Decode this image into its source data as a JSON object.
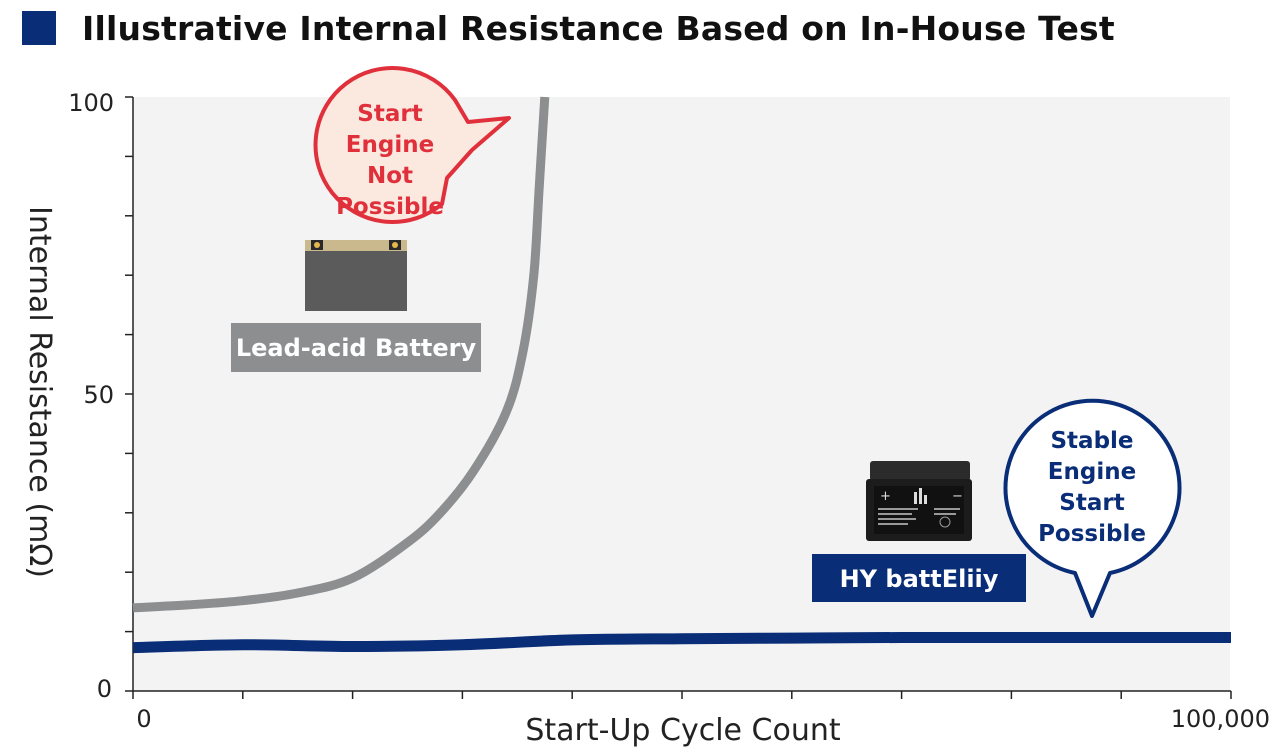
{
  "title": "Illustrative Internal Resistance Based on In-House Test",
  "colors": {
    "title_square": "#0a2d78",
    "plot_bg": "#f3f3f3",
    "lead_acid_line": "#8c8e90",
    "hy_line": "#0a2d78",
    "warn_red": "#e0303c",
    "warn_fill": "#fbe9df",
    "ok_fill": "#ffffff"
  },
  "chart_data": {
    "type": "line",
    "xlabel": "Start-Up Cycle Count",
    "ylabel": "Internal Resistance (mΩ)",
    "xlim": [
      0,
      100000
    ],
    "ylim": [
      0,
      100
    ],
    "x_tick_labels": [
      "0",
      "100,000"
    ],
    "y_tick_labels": [
      "0",
      "50",
      "100"
    ],
    "series": [
      {
        "name": "Lead-acid Battery",
        "color": "#8c8e90",
        "x": [
          0,
          5000,
          10000,
          15000,
          20000,
          25000,
          28000,
          31000,
          34000,
          35500,
          36500,
          37000,
          37500
        ],
        "y": [
          14,
          14.5,
          15.2,
          16.5,
          19,
          25,
          30,
          37,
          47,
          57,
          70,
          85,
          100
        ]
      },
      {
        "name": "HY battEliiy",
        "color": "#0a2d78",
        "x": [
          0,
          10000,
          20000,
          30000,
          40000,
          50000,
          60000,
          70000,
          80000,
          90000,
          100000
        ],
        "y": [
          7.3,
          7.8,
          7.5,
          7.8,
          8.6,
          8.8,
          8.9,
          9.0,
          9.0,
          9.0,
          9.0
        ]
      }
    ],
    "annotations": {
      "lead_bubble": [
        "Start",
        "Engine",
        "Not",
        "Possible"
      ],
      "hy_bubble": [
        "Stable",
        "Engine",
        "Start",
        "Possible"
      ],
      "lead_label": "Lead-acid Battery",
      "hy_label": "HY battEliiy"
    }
  }
}
